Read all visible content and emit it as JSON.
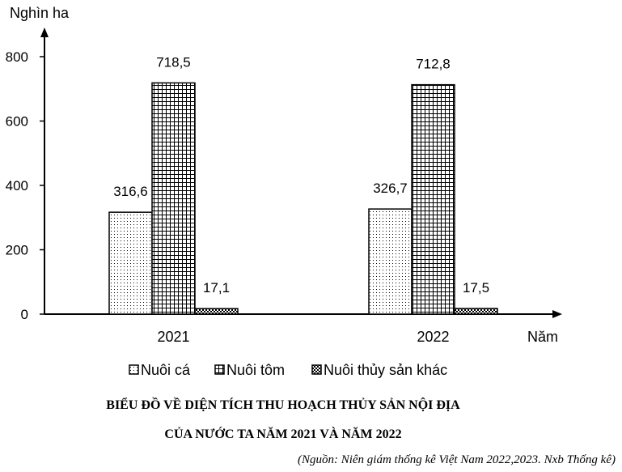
{
  "chart_data": {
    "type": "bar",
    "ylabel": "Nghìn ha",
    "xlabel": "Năm",
    "categories": [
      "2021",
      "2022"
    ],
    "ylim": [
      0,
      800
    ],
    "yticks": [
      "0",
      "200",
      "400",
      "600",
      "800"
    ],
    "grid": false,
    "legend_position": "bottom",
    "series": [
      {
        "name": "Nuôi cá",
        "values": [
          316.6,
          326.7
        ],
        "labels": [
          "316,6",
          "326,7"
        ],
        "pattern": "dots"
      },
      {
        "name": "Nuôi tôm",
        "values": [
          718.5,
          712.8
        ],
        "labels": [
          "718,5",
          "712,8"
        ],
        "pattern": "grid"
      },
      {
        "name": "Nuôi thủy sản khác",
        "values": [
          17.1,
          17.5
        ],
        "labels": [
          "17,1",
          "17,5"
        ],
        "pattern": "checker"
      }
    ]
  },
  "title_line1": "BIỂU ĐỒ VỀ DIỆN TÍCH THU HOẠCH THỦY SẢN NỘI ĐỊA",
  "title_line2": "CỦA NƯỚC TA NĂM 2021 VÀ NĂM 2022",
  "source": "(Nguồn: Niên giám thống kê Việt Nam 2022,2023. Nxb Thống kê)"
}
